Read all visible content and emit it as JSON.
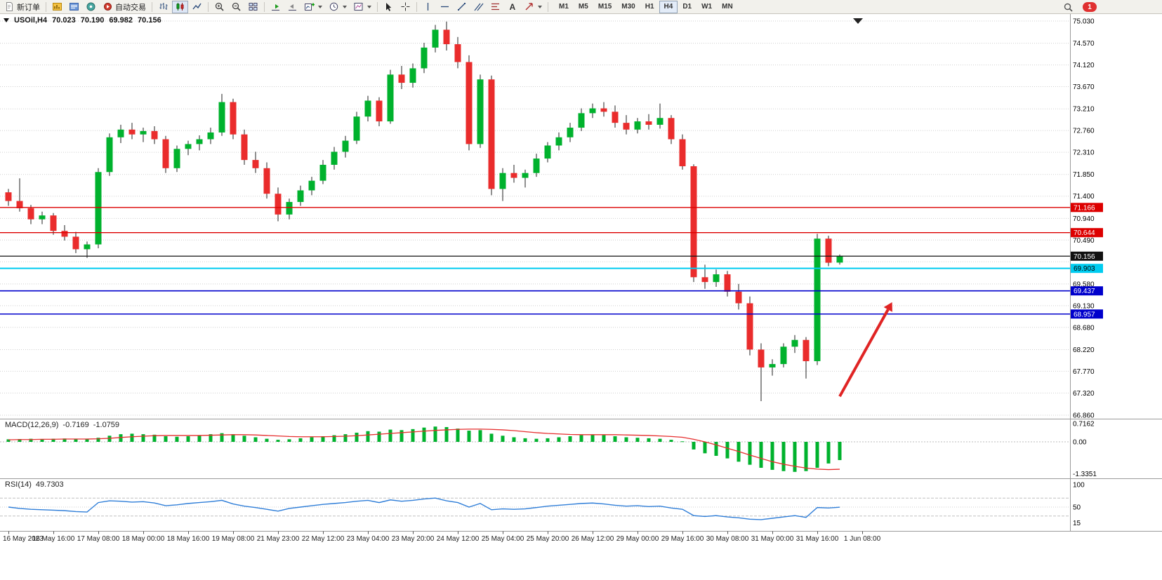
{
  "toolbar": {
    "new_order_label": "新订单",
    "autotrading_label": "自动交易",
    "timeframes": [
      "M1",
      "M5",
      "M15",
      "M30",
      "H1",
      "H4",
      "D1",
      "W1",
      "MN"
    ],
    "active_timeframe": "H4",
    "notification_count": "1"
  },
  "chart": {
    "symbol_period": "USOil,H4",
    "open": "70.023",
    "high": "70.190",
    "low": "69.982",
    "close": "70.156"
  },
  "macd": {
    "title": "MACD(12,26,9)",
    "main_value": "-0.7169",
    "signal_value": "-1.0759"
  },
  "rsi": {
    "title": "RSI(14)",
    "value": "49.7303"
  },
  "chart_data": {
    "type": "candlestick",
    "symbol": "USOil",
    "period": "H4",
    "last_ohlc": {
      "open": 70.023,
      "high": 70.19,
      "low": 69.982,
      "close": 70.156
    },
    "price_axis": {
      "ticks": [
        75.03,
        74.57,
        74.12,
        73.67,
        73.21,
        72.76,
        72.31,
        71.85,
        71.4,
        70.94,
        70.49,
        70.04,
        69.58,
        69.13,
        68.68,
        68.22,
        67.77,
        67.32,
        66.86
      ],
      "hidden": [
        70.04
      ]
    },
    "candles": [
      [
        71.48,
        71.55,
        71.2,
        71.3
      ],
      [
        71.3,
        71.77,
        71.08,
        71.15
      ],
      [
        71.15,
        71.22,
        70.82,
        70.92
      ],
      [
        70.92,
        71.08,
        70.82,
        71.0
      ],
      [
        71.0,
        71.05,
        70.6,
        70.68
      ],
      [
        70.68,
        70.8,
        70.48,
        70.56
      ],
      [
        70.56,
        70.66,
        70.22,
        70.3
      ],
      [
        70.3,
        70.46,
        70.12,
        70.4
      ],
      [
        70.4,
        71.98,
        70.32,
        71.9
      ],
      [
        71.9,
        72.7,
        71.82,
        72.62
      ],
      [
        72.62,
        72.88,
        72.5,
        72.78
      ],
      [
        72.78,
        72.92,
        72.58,
        72.68
      ],
      [
        72.68,
        72.82,
        72.52,
        72.75
      ],
      [
        72.75,
        72.85,
        72.48,
        72.58
      ],
      [
        72.58,
        72.65,
        71.88,
        71.98
      ],
      [
        71.98,
        72.45,
        71.9,
        72.38
      ],
      [
        72.38,
        72.55,
        72.25,
        72.48
      ],
      [
        72.48,
        72.66,
        72.35,
        72.58
      ],
      [
        72.58,
        72.82,
        72.48,
        72.72
      ],
      [
        72.72,
        73.52,
        72.65,
        73.35
      ],
      [
        73.35,
        73.42,
        72.58,
        72.68
      ],
      [
        72.68,
        72.78,
        72.05,
        72.15
      ],
      [
        72.15,
        72.32,
        71.88,
        71.98
      ],
      [
        71.98,
        72.1,
        71.35,
        71.45
      ],
      [
        71.45,
        71.58,
        70.88,
        71.02
      ],
      [
        71.02,
        71.35,
        70.92,
        71.28
      ],
      [
        71.28,
        71.62,
        71.2,
        71.52
      ],
      [
        71.52,
        71.8,
        71.42,
        71.72
      ],
      [
        71.72,
        72.15,
        71.65,
        72.05
      ],
      [
        72.05,
        72.42,
        71.95,
        72.32
      ],
      [
        72.32,
        72.65,
        72.2,
        72.55
      ],
      [
        72.55,
        73.15,
        72.48,
        73.05
      ],
      [
        73.05,
        73.48,
        72.95,
        73.38
      ],
      [
        73.38,
        73.45,
        72.85,
        72.95
      ],
      [
        72.95,
        74.02,
        72.9,
        73.92
      ],
      [
        73.92,
        74.1,
        73.62,
        73.75
      ],
      [
        73.75,
        74.15,
        73.65,
        74.05
      ],
      [
        74.05,
        74.58,
        73.95,
        74.48
      ],
      [
        74.48,
        74.95,
        74.38,
        74.85
      ],
      [
        74.85,
        75.02,
        74.42,
        74.55
      ],
      [
        74.55,
        74.7,
        74.05,
        74.18
      ],
      [
        74.18,
        74.32,
        72.35,
        72.48
      ],
      [
        72.48,
        73.92,
        72.4,
        73.82
      ],
      [
        73.82,
        73.9,
        71.42,
        71.55
      ],
      [
        71.55,
        71.98,
        71.3,
        71.88
      ],
      [
        71.88,
        72.05,
        71.68,
        71.78
      ],
      [
        71.78,
        71.95,
        71.58,
        71.88
      ],
      [
        71.88,
        72.28,
        71.8,
        72.18
      ],
      [
        72.18,
        72.52,
        72.1,
        72.45
      ],
      [
        72.45,
        72.72,
        72.35,
        72.62
      ],
      [
        72.62,
        72.92,
        72.52,
        72.82
      ],
      [
        72.82,
        73.22,
        72.75,
        73.12
      ],
      [
        73.12,
        73.32,
        73.02,
        73.22
      ],
      [
        73.22,
        73.35,
        73.05,
        73.15
      ],
      [
        73.15,
        73.28,
        72.82,
        72.92
      ],
      [
        72.92,
        73.08,
        72.68,
        72.78
      ],
      [
        72.78,
        73.02,
        72.7,
        72.95
      ],
      [
        72.95,
        73.1,
        72.78,
        72.88
      ],
      [
        72.88,
        73.32,
        72.8,
        73.02
      ],
      [
        73.02,
        73.08,
        72.48,
        72.58
      ],
      [
        72.58,
        72.68,
        71.95,
        72.02
      ],
      [
        72.02,
        72.06,
        69.62,
        69.72
      ],
      [
        69.72,
        69.98,
        69.48,
        69.62
      ],
      [
        69.62,
        69.88,
        69.52,
        69.78
      ],
      [
        69.78,
        69.85,
        69.32,
        69.42
      ],
      [
        69.42,
        69.58,
        69.05,
        69.18
      ],
      [
        69.18,
        69.32,
        68.1,
        68.22
      ],
      [
        68.22,
        68.35,
        67.15,
        67.85
      ],
      [
        67.85,
        68.02,
        67.68,
        67.92
      ],
      [
        67.92,
        68.35,
        67.85,
        68.28
      ],
      [
        68.28,
        68.52,
        68.15,
        68.42
      ],
      [
        68.42,
        68.48,
        67.62,
        67.98
      ],
      [
        67.98,
        70.62,
        67.9,
        70.52
      ],
      [
        70.52,
        70.58,
        69.95,
        70.02
      ],
      [
        70.023,
        70.19,
        69.982,
        70.156
      ]
    ],
    "levels": [
      {
        "price": 71.166,
        "color": "#dd0000",
        "text": "#ffffff",
        "width": 1.4
      },
      {
        "price": 70.644,
        "color": "#dd0000",
        "text": "#ffffff",
        "width": 1.4
      },
      {
        "price": 70.156,
        "color": "#111111",
        "text": "#ffffff",
        "width": 1.2
      },
      {
        "price": 69.903,
        "color": "#00ccf0",
        "text": "#000000",
        "width": 2
      },
      {
        "price": 69.437,
        "color": "#0000cc",
        "text": "#ffffff",
        "width": 1.6
      },
      {
        "price": 68.957,
        "color": "#0000cc",
        "text": "#ffffff",
        "width": 1.6
      }
    ],
    "time_labels": [
      {
        "bar": 0,
        "label": "16 May 2023"
      },
      {
        "bar": 4,
        "label": "16 May 16:00"
      },
      {
        "bar": 8,
        "label": "17 May 08:00"
      },
      {
        "bar": 12,
        "label": "18 May 00:00"
      },
      {
        "bar": 16,
        "label": "18 May 16:00"
      },
      {
        "bar": 20,
        "label": "19 May 08:00"
      },
      {
        "bar": 24,
        "label": "21 May 23:00"
      },
      {
        "bar": 28,
        "label": "22 May 12:00"
      },
      {
        "bar": 32,
        "label": "23 May 04:00"
      },
      {
        "bar": 36,
        "label": "23 May 20:00"
      },
      {
        "bar": 40,
        "label": "24 May 12:00"
      },
      {
        "bar": 44,
        "label": "25 May 04:00"
      },
      {
        "bar": 48,
        "label": "25 May 20:00"
      },
      {
        "bar": 52,
        "label": "26 May 12:00"
      },
      {
        "bar": 56,
        "label": "29 May 00:00"
      },
      {
        "bar": 60,
        "label": "29 May 16:00"
      },
      {
        "bar": 64,
        "label": "30 May 08:00"
      },
      {
        "bar": 68,
        "label": "31 May 00:00"
      },
      {
        "bar": 72,
        "label": "31 May 16:00"
      },
      {
        "bar": 76,
        "label": "1 Jun 08:00"
      }
    ],
    "indicators": {
      "macd": {
        "params": "12,26,9",
        "current_main": -0.7169,
        "current_signal": -1.0759,
        "axis": [
          0.7162,
          0,
          -1.3351
        ],
        "histogram": [
          0.1,
          0.11,
          0.12,
          0.11,
          0.12,
          0.13,
          0.11,
          0.1,
          0.16,
          0.24,
          0.3,
          0.32,
          0.3,
          0.28,
          0.22,
          0.2,
          0.22,
          0.26,
          0.3,
          0.34,
          0.3,
          0.24,
          0.18,
          0.12,
          0.08,
          0.1,
          0.14,
          0.18,
          0.22,
          0.26,
          0.3,
          0.36,
          0.42,
          0.4,
          0.48,
          0.46,
          0.5,
          0.56,
          0.6,
          0.58,
          0.52,
          0.44,
          0.46,
          0.32,
          0.24,
          0.18,
          0.14,
          0.12,
          0.14,
          0.18,
          0.22,
          0.26,
          0.28,
          0.26,
          0.22,
          0.18,
          0.16,
          0.14,
          0.12,
          0.08,
          0.02,
          -0.3,
          -0.45,
          -0.55,
          -0.65,
          -0.78,
          -0.9,
          -1.02,
          -1.1,
          -1.15,
          -1.18,
          -1.15,
          -1.02,
          -0.85,
          -0.7169
        ],
        "signal": [
          0.08,
          0.09,
          0.09,
          0.1,
          0.1,
          0.11,
          0.11,
          0.11,
          0.12,
          0.14,
          0.17,
          0.2,
          0.22,
          0.24,
          0.25,
          0.25,
          0.25,
          0.25,
          0.26,
          0.27,
          0.28,
          0.28,
          0.27,
          0.25,
          0.23,
          0.21,
          0.2,
          0.2,
          0.2,
          0.21,
          0.22,
          0.24,
          0.27,
          0.3,
          0.33,
          0.36,
          0.39,
          0.42,
          0.45,
          0.47,
          0.49,
          0.5,
          0.5,
          0.49,
          0.47,
          0.44,
          0.4,
          0.36,
          0.33,
          0.31,
          0.29,
          0.28,
          0.28,
          0.28,
          0.28,
          0.27,
          0.26,
          0.25,
          0.23,
          0.21,
          0.18,
          0.1,
          0.0,
          -0.12,
          -0.25,
          -0.38,
          -0.52,
          -0.65,
          -0.78,
          -0.88,
          -0.96,
          -1.03,
          -1.07,
          -1.09,
          -1.0759
        ]
      },
      "rsi": {
        "period": 14,
        "current": 49.7303,
        "axis": [
          100,
          50,
          15
        ],
        "levels": [
          70,
          30
        ],
        "values": [
          50,
          47,
          45,
          44,
          43,
          42,
          40,
          39,
          60,
          64,
          63,
          61,
          62,
          59,
          53,
          55,
          58,
          60,
          62,
          65,
          57,
          52,
          49,
          45,
          41,
          47,
          50,
          53,
          56,
          58,
          60,
          63,
          65,
          60,
          66,
          63,
          65,
          68,
          70,
          64,
          60,
          50,
          58,
          44,
          46,
          45,
          46,
          49,
          52,
          54,
          56,
          58,
          59,
          57,
          54,
          52,
          53,
          51,
          52,
          48,
          45,
          31,
          29,
          31,
          28,
          26,
          23,
          22,
          25,
          28,
          31,
          27,
          49,
          48,
          49.7303
        ]
      }
    },
    "annotations": [
      {
        "type": "arrow",
        "bar_from": 74,
        "price_from": 67.25,
        "bar_to": 78.3,
        "price_to": 69.05,
        "color": "#e02424"
      }
    ],
    "colors": {
      "up": "#00b22d",
      "down": "#ea2c2c",
      "wick": "#222222",
      "macd_hist": "#00b22d",
      "macd_signal": "#e62e2e",
      "rsi": "#2f7ed8",
      "grid": "#cfcfcf",
      "axis_text": "#000000"
    }
  }
}
